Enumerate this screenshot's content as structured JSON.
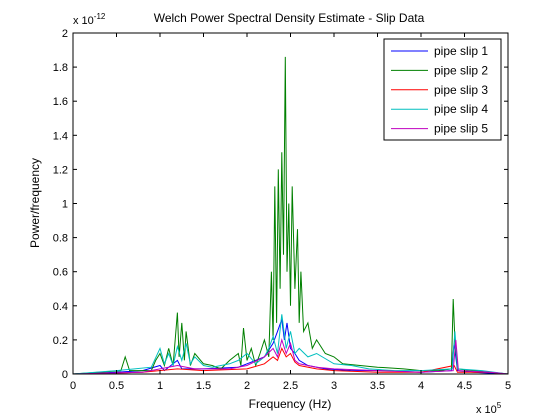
{
  "chart_data": {
    "type": "line",
    "title": "Welch Power Spectral Density Estimate - Slip Data",
    "xlabel": "Frequency (Hz)",
    "ylabel": "Power/frequency",
    "x_exponent_label": "x 10",
    "x_exponent": "5",
    "y_exponent_label": "x 10",
    "y_exponent": "-12",
    "xlim": [
      0,
      5
    ],
    "ylim": [
      0,
      2
    ],
    "xticks": [
      0,
      0.5,
      1,
      1.5,
      2,
      2.5,
      3,
      3.5,
      4,
      4.5,
      5
    ],
    "xtick_labels": [
      "0",
      "0.5",
      "1",
      "1.5",
      "2",
      "2.5",
      "3",
      "3.5",
      "4",
      "4.5",
      "5"
    ],
    "yticks": [
      0,
      0.2,
      0.4,
      0.6,
      0.8,
      1,
      1.2,
      1.4,
      1.6,
      1.8,
      2
    ],
    "ytick_labels": [
      "0",
      "0.2",
      "0.4",
      "0.6",
      "0.8",
      "1",
      "1.2",
      "1.4",
      "1.6",
      "1.8",
      "2"
    ],
    "grid": false,
    "legend_position": "top-right",
    "series": [
      {
        "name": "pipe slip 1",
        "color": "#0000ff",
        "x": [
          0,
          0.5,
          0.8,
          1.0,
          1.05,
          1.2,
          1.25,
          1.5,
          1.9,
          2.0,
          2.2,
          2.3,
          2.35,
          2.4,
          2.43,
          2.46,
          2.5,
          2.55,
          2.6,
          2.7,
          2.9,
          3.2,
          3.6,
          4.0,
          4.35,
          4.38,
          4.42,
          4.6,
          5.0
        ],
        "values": [
          0,
          0.01,
          0.02,
          0.05,
          0.02,
          0.08,
          0.03,
          0.03,
          0.04,
          0.06,
          0.1,
          0.18,
          0.25,
          0.32,
          0.2,
          0.3,
          0.15,
          0.12,
          0.08,
          0.05,
          0.03,
          0.02,
          0.02,
          0.01,
          0.02,
          0.18,
          0.02,
          0.01,
          0
        ]
      },
      {
        "name": "pipe slip 2",
        "color": "#008000",
        "x": [
          0,
          0.3,
          0.55,
          0.6,
          0.65,
          0.9,
          0.95,
          1.0,
          1.05,
          1.1,
          1.15,
          1.2,
          1.22,
          1.25,
          1.28,
          1.3,
          1.35,
          1.4,
          1.5,
          1.6,
          1.7,
          1.8,
          1.9,
          1.93,
          1.96,
          2.0,
          2.05,
          2.1,
          2.15,
          2.2,
          2.25,
          2.28,
          2.3,
          2.32,
          2.34,
          2.36,
          2.38,
          2.4,
          2.42,
          2.44,
          2.46,
          2.48,
          2.5,
          2.52,
          2.55,
          2.58,
          2.6,
          2.62,
          2.65,
          2.7,
          2.75,
          2.8,
          2.9,
          3.0,
          3.1,
          3.3,
          3.5,
          3.8,
          4.0,
          4.2,
          4.35,
          4.37,
          4.39,
          4.42,
          4.6,
          4.8,
          5.0
        ],
        "values": [
          0,
          0.01,
          0.02,
          0.1,
          0.02,
          0.02,
          0.08,
          0.12,
          0.05,
          0.15,
          0.05,
          0.36,
          0.1,
          0.3,
          0.08,
          0.25,
          0.05,
          0.12,
          0.06,
          0.05,
          0.03,
          0.08,
          0.12,
          0.05,
          0.27,
          0.08,
          0.15,
          0.05,
          0.12,
          0.2,
          0.1,
          0.6,
          0.2,
          1.1,
          0.3,
          1.2,
          0.5,
          1.3,
          0.7,
          1.86,
          0.6,
          1.0,
          0.4,
          1.1,
          0.5,
          0.85,
          0.3,
          0.6,
          0.25,
          0.3,
          0.15,
          0.2,
          0.12,
          0.1,
          0.06,
          0.05,
          0.04,
          0.03,
          0.02,
          0.02,
          0.03,
          0.44,
          0.2,
          0.03,
          0.02,
          0.01,
          0
        ]
      },
      {
        "name": "pipe slip 3",
        "color": "#ff0000",
        "x": [
          0,
          0.8,
          1.2,
          1.5,
          2.0,
          2.2,
          2.3,
          2.35,
          2.4,
          2.45,
          2.5,
          2.55,
          2.6,
          2.8,
          3.0,
          3.5,
          4.0,
          4.38,
          4.42,
          4.8,
          5.0
        ],
        "values": [
          0,
          0.01,
          0.03,
          0.02,
          0.03,
          0.06,
          0.1,
          0.08,
          0.15,
          0.1,
          0.12,
          0.07,
          0.05,
          0.03,
          0.02,
          0.01,
          0.01,
          0.05,
          0.01,
          0.01,
          0
        ]
      },
      {
        "name": "pipe slip 4",
        "color": "#00bfbf",
        "x": [
          0,
          0.5,
          0.9,
          1.0,
          1.05,
          1.1,
          1.15,
          1.2,
          1.25,
          1.3,
          1.35,
          1.4,
          1.5,
          1.6,
          1.8,
          1.9,
          2.0,
          2.1,
          2.2,
          2.25,
          2.3,
          2.35,
          2.4,
          2.45,
          2.5,
          2.55,
          2.6,
          2.7,
          2.8,
          3.0,
          3.2,
          3.4,
          3.7,
          4.0,
          4.36,
          4.39,
          4.42,
          4.7,
          5.0
        ],
        "values": [
          0,
          0.02,
          0.04,
          0.15,
          0.06,
          0.12,
          0.05,
          0.16,
          0.08,
          0.18,
          0.06,
          0.1,
          0.05,
          0.04,
          0.06,
          0.08,
          0.12,
          0.06,
          0.1,
          0.15,
          0.22,
          0.12,
          0.35,
          0.15,
          0.25,
          0.12,
          0.15,
          0.1,
          0.12,
          0.06,
          0.05,
          0.03,
          0.02,
          0.02,
          0.03,
          0.25,
          0.03,
          0.02,
          0
        ]
      },
      {
        "name": "pipe slip 5",
        "color": "#bf00bf",
        "x": [
          0,
          0.8,
          1.0,
          1.2,
          1.4,
          1.8,
          2.0,
          2.2,
          2.3,
          2.35,
          2.4,
          2.45,
          2.5,
          2.55,
          2.6,
          2.8,
          3.0,
          3.5,
          4.0,
          4.37,
          4.4,
          4.43,
          4.8,
          5.0
        ],
        "values": [
          0,
          0.01,
          0.03,
          0.05,
          0.03,
          0.03,
          0.05,
          0.1,
          0.15,
          0.1,
          0.2,
          0.12,
          0.18,
          0.08,
          0.06,
          0.04,
          0.03,
          0.02,
          0.01,
          0.02,
          0.2,
          0.02,
          0.01,
          0
        ]
      }
    ]
  }
}
